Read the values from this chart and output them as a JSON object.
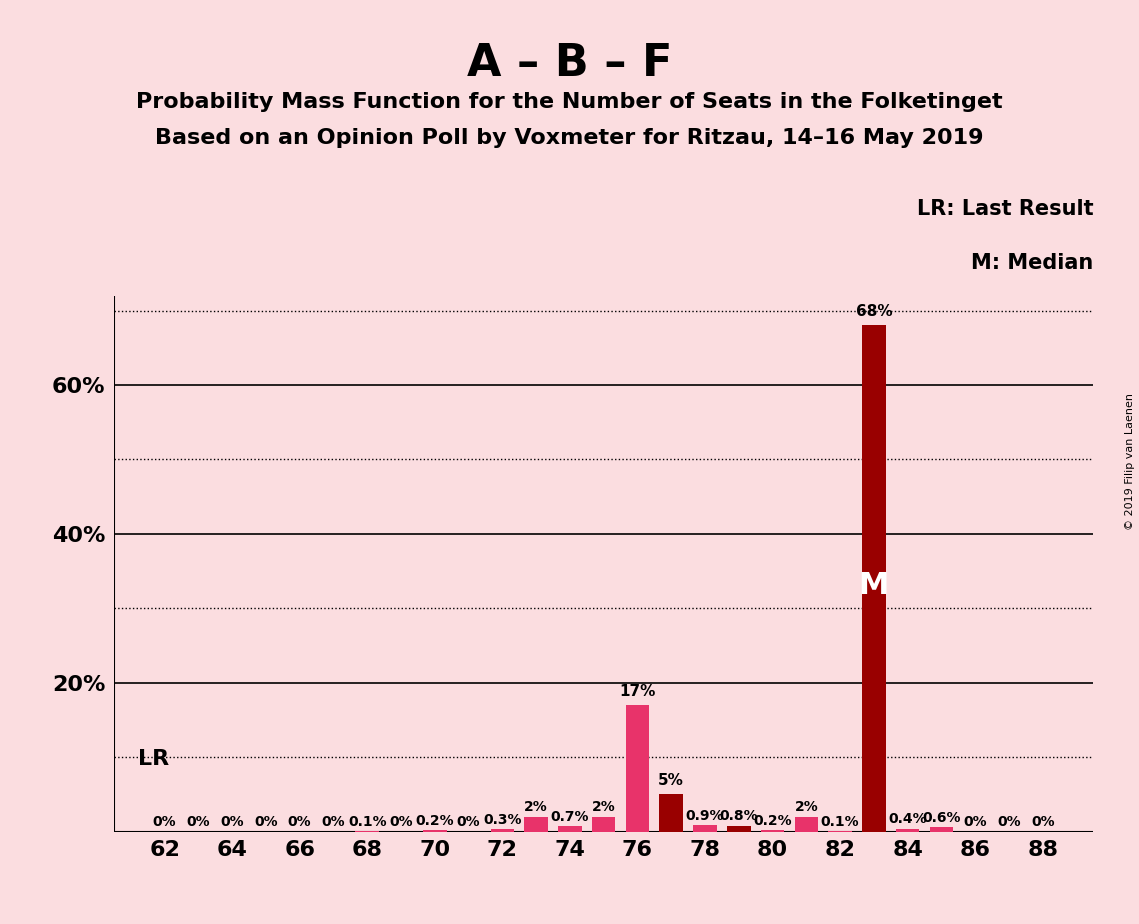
{
  "title_main": "A – B – F",
  "title_sub1": "Probability Mass Function for the Number of Seats in the Folketinget",
  "title_sub2": "Based on an Opinion Poll by Voxmeter for Ritzau, 14–16 May 2019",
  "background_color": "#FBDDE0",
  "seats": [
    62,
    63,
    64,
    65,
    66,
    67,
    68,
    69,
    70,
    71,
    72,
    73,
    74,
    75,
    76,
    77,
    78,
    79,
    80,
    81,
    82,
    83,
    84,
    85,
    86,
    87,
    88
  ],
  "values": [
    0.0,
    0.0,
    0.0,
    0.0,
    0.0,
    0.0,
    0.1,
    0.0,
    0.2,
    0.0,
    0.3,
    2.0,
    0.7,
    2.0,
    17.0,
    5.0,
    0.9,
    0.8,
    0.2,
    2.0,
    0.1,
    68.0,
    0.4,
    0.6,
    0.0,
    0.0,
    0.0
  ],
  "bar_colors": [
    "#E8336A",
    "#E8336A",
    "#E8336A",
    "#E8336A",
    "#E8336A",
    "#E8336A",
    "#E8336A",
    "#E8336A",
    "#E8336A",
    "#E8336A",
    "#E8336A",
    "#E8336A",
    "#E8336A",
    "#E8336A",
    "#E8336A",
    "#990000",
    "#E8336A",
    "#990000",
    "#E8336A",
    "#E8336A",
    "#E8336A",
    "#990000",
    "#E8336A",
    "#E8336A",
    "#E8336A",
    "#E8336A",
    "#E8336A"
  ],
  "ylim_max": 72,
  "ytick_positions": [
    20,
    40,
    60
  ],
  "ytick_labels": [
    "20%",
    "40%",
    "60%"
  ],
  "solid_yticks": [
    0,
    20,
    40,
    60
  ],
  "dotted_yticks": [
    10,
    30,
    50,
    70
  ],
  "xlabel_seats": [
    62,
    64,
    66,
    68,
    70,
    72,
    74,
    76,
    78,
    80,
    82,
    84,
    86,
    88
  ],
  "legend_lr": "LR: Last Result",
  "legend_m": "M: Median",
  "watermark": "© 2019 Filip van Laenen",
  "bar_width": 0.7,
  "value_labels": {
    "68": "0.1%",
    "70": "0.2%",
    "72": "0.3%",
    "73": "2%",
    "74": "0.7%",
    "75": "2%",
    "76": "17%",
    "77": "5%",
    "78": "0.9%",
    "79": "0.8%",
    "80": "0.2%",
    "81": "2%",
    "82": "0.1%",
    "83": "68%",
    "84": "0.4%",
    "85": "0.6%"
  },
  "zero_label_seats": [
    62,
    63,
    64,
    65,
    66,
    67,
    69,
    71,
    86,
    87,
    88
  ]
}
